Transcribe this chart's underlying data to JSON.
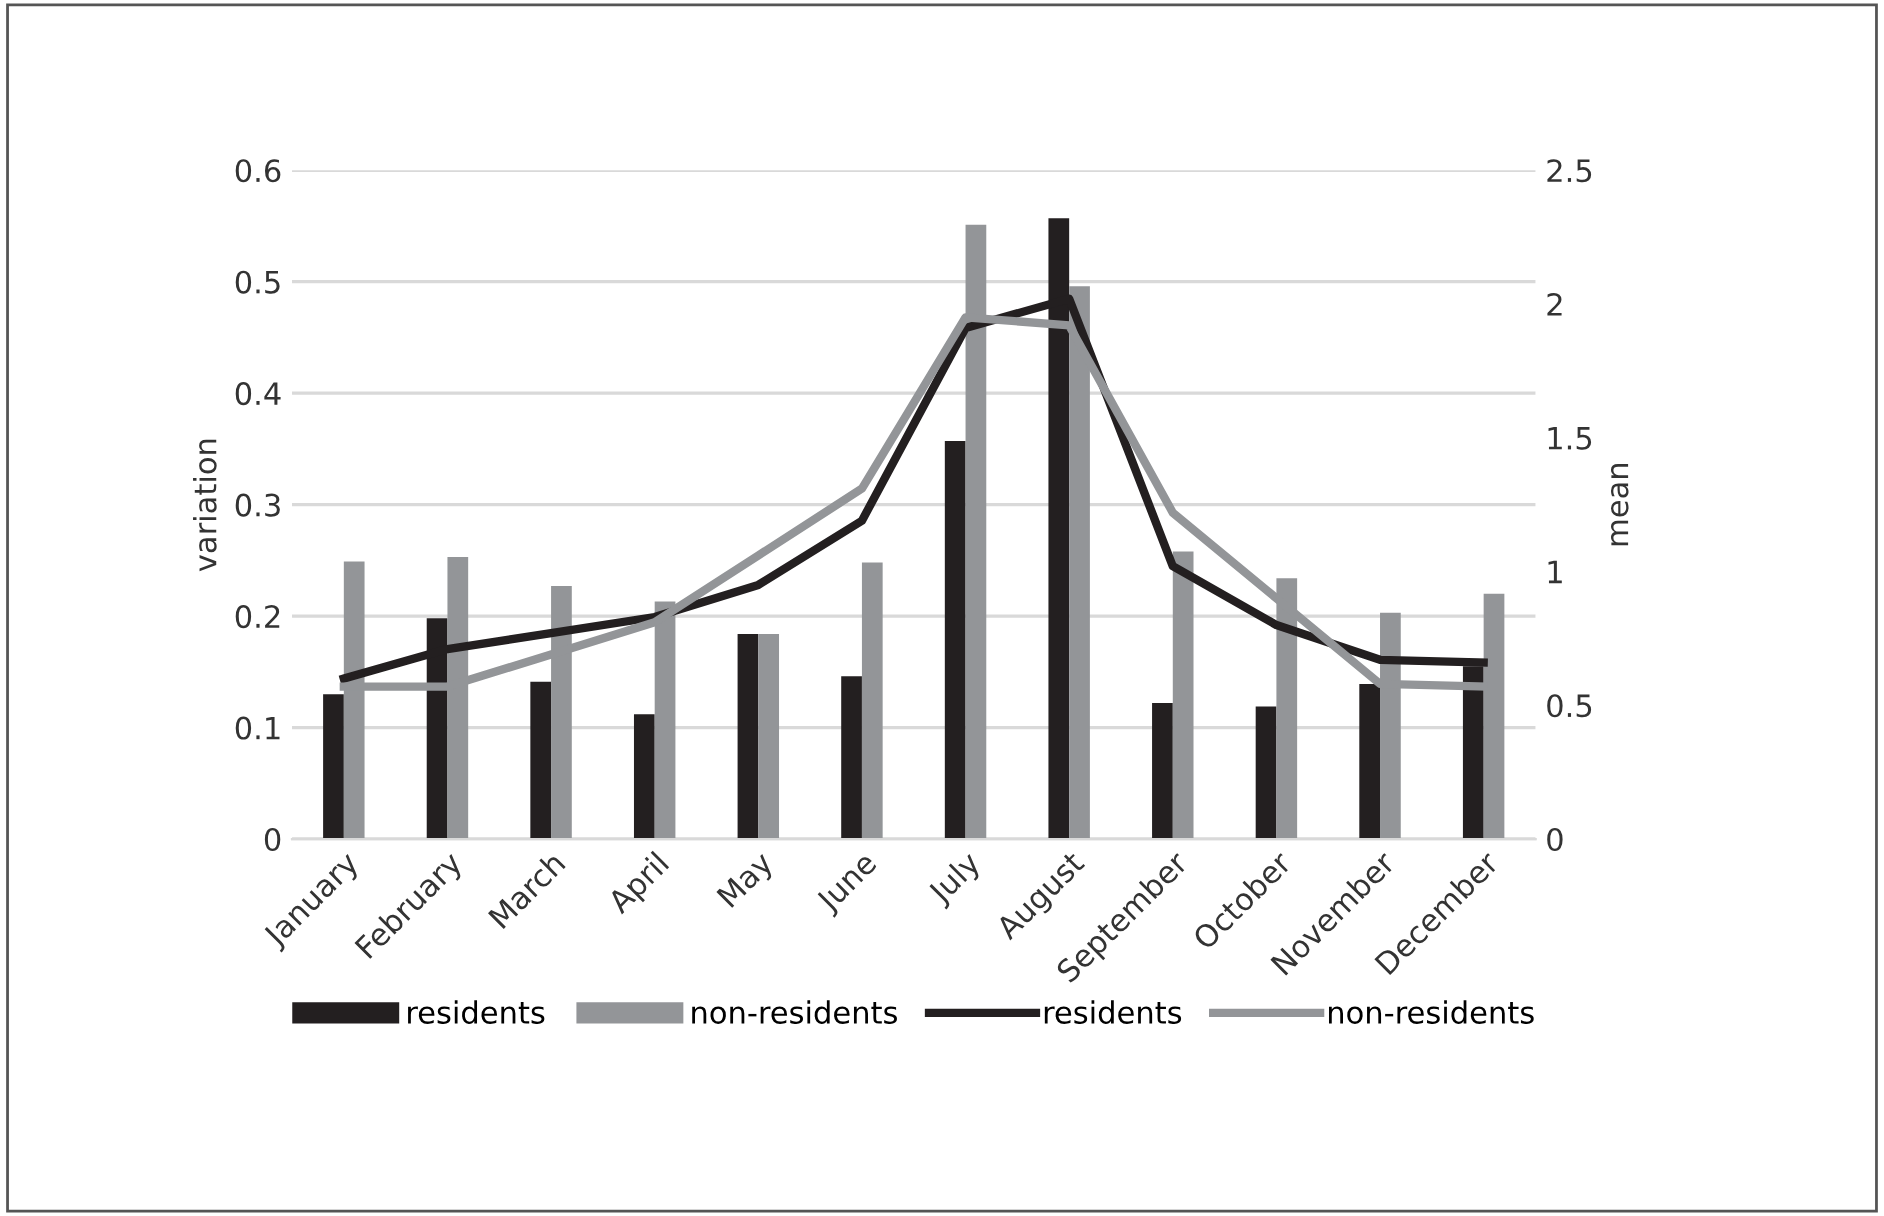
{
  "chart_data": {
    "type": "bar",
    "ylabel": "variation",
    "y2label": "mean",
    "categories": [
      "January",
      "February",
      "March",
      "April",
      "May",
      "June",
      "July",
      "August",
      "September",
      "October",
      "November",
      "December"
    ],
    "series": [
      {
        "name": "residents",
        "color": "#231f20",
        "values": [
          0.13,
          0.198,
          0.141,
          0.112,
          0.184,
          0.146,
          0.357,
          0.557,
          0.122,
          0.119,
          0.139,
          0.155
        ]
      },
      {
        "name": "non-residents",
        "color": "#939598",
        "values": [
          0.249,
          0.253,
          0.227,
          0.213,
          0.184,
          0.248,
          0.551,
          0.496,
          0.258,
          0.234,
          0.203,
          0.22
        ]
      },
      {
        "name": "residents",
        "type": "line",
        "axis": "y2",
        "color": "#231f20",
        "values": [
          0.6,
          0.71,
          0.77,
          0.83,
          0.95,
          1.19,
          1.91,
          2.02,
          1.02,
          0.8,
          0.67,
          0.66
        ]
      },
      {
        "name": "non-residents",
        "type": "line",
        "axis": "y2",
        "color": "#939598",
        "values": [
          0.57,
          0.57,
          0.69,
          0.81,
          1.06,
          1.31,
          1.95,
          1.92,
          1.22,
          0.9,
          0.58,
          0.57
        ]
      }
    ],
    "ylim": [
      0,
      0.6
    ],
    "yticks": [
      0,
      0.1,
      0.2,
      0.3,
      0.4,
      0.5,
      0.6
    ],
    "y2lim": [
      0,
      2.5
    ],
    "y2ticks": [
      0,
      0.5,
      1,
      1.5,
      2,
      2.5
    ],
    "grid": "y",
    "legend": "bottom",
    "marker": "none",
    "line_style": "solid"
  }
}
